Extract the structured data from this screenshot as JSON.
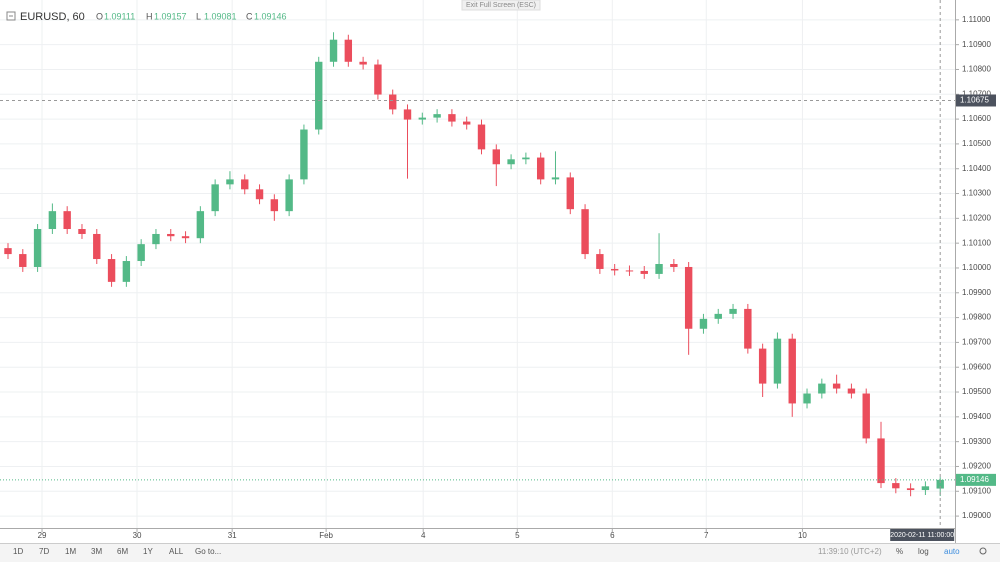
{
  "chart_data": {
    "type": "candlestick",
    "symbol": "EURUSD, 60",
    "header": [
      {
        "label": "O",
        "value": 1.09111
      },
      {
        "label": "H",
        "value": 1.09157
      },
      {
        "label": "L",
        "value": 1.09081
      },
      {
        "label": "C",
        "value": 1.09146
      }
    ],
    "banner": "Exit Full Screen (ESC)",
    "up_color": "#53b987",
    "down_color": "#eb4d5c",
    "grid": true,
    "xlim": [
      -0.54,
      64
    ],
    "xticks": [
      {
        "value": 2.3,
        "label": "29"
      },
      {
        "value": 8.72,
        "label": "30"
      },
      {
        "value": 15.15,
        "label": "31"
      },
      {
        "value": 21.5,
        "label": "Feb"
      },
      {
        "value": 28.06,
        "label": "4"
      },
      {
        "value": 34.42,
        "label": "5"
      },
      {
        "value": 40.84,
        "label": "6"
      },
      {
        "value": 47.19,
        "label": "7"
      },
      {
        "value": 53.69,
        "label": "10"
      }
    ],
    "ylim": [
      1.08952,
      1.1108
    ],
    "yticks": [
      {
        "value": 1.09,
        "label": "1.09000"
      },
      {
        "value": 1.091,
        "label": "1.09100"
      },
      {
        "value": 1.092,
        "label": "1.09200"
      },
      {
        "value": 1.093,
        "label": "1.09300"
      },
      {
        "value": 1.094,
        "label": "1.09400"
      },
      {
        "value": 1.095,
        "label": "1.09500"
      },
      {
        "value": 1.096,
        "label": "1.09600"
      },
      {
        "value": 1.097,
        "label": "1.09700"
      },
      {
        "value": 1.098,
        "label": "1.09800"
      },
      {
        "value": 1.099,
        "label": "1.09900"
      },
      {
        "value": 1.1,
        "label": "1.10000"
      },
      {
        "value": 1.101,
        "label": "1.10100"
      },
      {
        "value": 1.102,
        "label": "1.10200"
      },
      {
        "value": 1.103,
        "label": "1.10300"
      },
      {
        "value": 1.104,
        "label": "1.10400"
      },
      {
        "value": 1.105,
        "label": "1.10500"
      },
      {
        "value": 1.106,
        "label": "1.10600"
      },
      {
        "value": 1.107,
        "label": "1.10700"
      },
      {
        "value": 1.108,
        "label": "1.10800"
      },
      {
        "value": 1.109,
        "label": "1.10900"
      },
      {
        "value": 1.11,
        "label": "1.11000"
      }
    ],
    "open": [
      1.1008,
      1.10056,
      1.10004,
      1.10157,
      1.10229,
      1.10157,
      1.10137,
      1.10036,
      1.09944,
      1.10028,
      1.10096,
      1.10137,
      1.10128,
      1.1012,
      1.10229,
      1.10337,
      1.10357,
      1.10317,
      1.10277,
      1.10229,
      1.10357,
      1.10558,
      1.10831,
      1.1092,
      1.10831,
      1.1082,
      1.10699,
      1.10639,
      1.10598,
      1.10606,
      1.1062,
      1.1059,
      1.10578,
      1.10478,
      1.10418,
      1.10438,
      1.10445,
      1.10357,
      1.10365,
      1.10237,
      1.10056,
      1.09996,
      1.0999,
      1.09988,
      1.09976,
      1.10016,
      1.10004,
      1.09755,
      1.09795,
      1.09815,
      1.09835,
      1.09675,
      1.09534,
      1.09715,
      1.09454,
      1.09494,
      1.09534,
      1.09514,
      1.09494,
      1.09313,
      1.09133,
      1.09112,
      1.09105,
      1.09111
    ],
    "high": [
      1.101,
      1.10076,
      1.10177,
      1.1026,
      1.10249,
      1.10177,
      1.10157,
      1.10056,
      1.10048,
      1.10116,
      1.10157,
      1.10157,
      1.10148,
      1.10249,
      1.10357,
      1.1039,
      1.10377,
      1.10337,
      1.10297,
      1.10377,
      1.10578,
      1.10851,
      1.1095,
      1.1094,
      1.10851,
      1.1084,
      1.10719,
      1.10659,
      1.10626,
      1.1064,
      1.1064,
      1.1061,
      1.10598,
      1.10498,
      1.10458,
      1.10465,
      1.10465,
      1.1047,
      1.10385,
      1.10257,
      1.10076,
      1.10016,
      1.1001,
      1.10008,
      1.1014,
      1.10036,
      1.10024,
      1.09815,
      1.09835,
      1.09855,
      1.09855,
      1.09695,
      1.0974,
      1.09735,
      1.09514,
      1.09554,
      1.0957,
      1.09534,
      1.09514,
      1.0938,
      1.09153,
      1.09132,
      1.0914,
      1.09157
    ],
    "low": [
      1.10036,
      1.09984,
      1.09984,
      1.10137,
      1.10137,
      1.10117,
      1.10016,
      1.09924,
      1.09924,
      1.10008,
      1.10076,
      1.10108,
      1.101,
      1.101,
      1.10209,
      1.10317,
      1.10297,
      1.10257,
      1.1019,
      1.10209,
      1.10337,
      1.10538,
      1.10811,
      1.10811,
      1.108,
      1.10679,
      1.10619,
      1.1036,
      1.10578,
      1.10586,
      1.1057,
      1.10558,
      1.10458,
      1.1033,
      1.10398,
      1.10418,
      1.10337,
      1.10337,
      1.10217,
      1.10036,
      1.09976,
      1.0997,
      1.09968,
      1.09956,
      1.09956,
      1.09984,
      1.0965,
      1.09735,
      1.09775,
      1.09795,
      1.09655,
      1.0948,
      1.09514,
      1.094,
      1.09434,
      1.09474,
      1.09494,
      1.09474,
      1.09293,
      1.09113,
      1.09092,
      1.0908,
      1.09085,
      1.09081
    ],
    "close": [
      1.10056,
      1.10004,
      1.10157,
      1.10229,
      1.10157,
      1.10137,
      1.10036,
      1.09944,
      1.10028,
      1.10096,
      1.10137,
      1.10128,
      1.1012,
      1.10229,
      1.10337,
      1.10357,
      1.10317,
      1.10277,
      1.10229,
      1.10357,
      1.10558,
      1.10831,
      1.1092,
      1.10831,
      1.1082,
      1.10699,
      1.10639,
      1.10598,
      1.10606,
      1.1062,
      1.1059,
      1.10578,
      1.10478,
      1.10418,
      1.10438,
      1.10445,
      1.10357,
      1.10365,
      1.10237,
      1.10056,
      1.09996,
      1.0999,
      1.09988,
      1.09976,
      1.10016,
      1.10004,
      1.09755,
      1.09795,
      1.09815,
      1.09835,
      1.09675,
      1.09534,
      1.09715,
      1.09454,
      1.09494,
      1.09534,
      1.09514,
      1.09494,
      1.09313,
      1.09133,
      1.09112,
      1.09105,
      1.0912,
      1.09146
    ],
    "crosshair_price": 1.10675,
    "crosshair_time": "2020-02-11 11:00:00",
    "crosshair_index": 63,
    "toolbar_left": [
      "1D",
      "7D",
      "1M",
      "3M",
      "6M",
      "1Y",
      "ALL",
      "Go to..."
    ],
    "clock": "11:39:10 (UTC+2)",
    "toolbar_right": [
      "%",
      "log",
      "auto"
    ]
  }
}
